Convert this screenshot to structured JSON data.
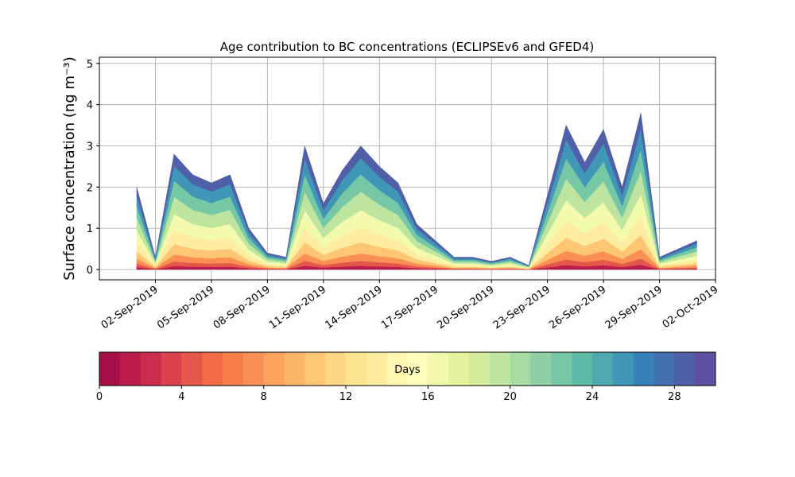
{
  "chart_data": {
    "type": "stacked_area",
    "title": "Age contribution to BC concentrations (ECLIPSEv6 and GFED4)",
    "ylabel": "Surface concentration (ng m⁻³)",
    "x": [
      "2019-09-01",
      "2019-09-02",
      "2019-09-03",
      "2019-09-04",
      "2019-09-05",
      "2019-09-06",
      "2019-09-07",
      "2019-09-08",
      "2019-09-09",
      "2019-09-10",
      "2019-09-11",
      "2019-09-12",
      "2019-09-13",
      "2019-09-14",
      "2019-09-15",
      "2019-09-16",
      "2019-09-17",
      "2019-09-18",
      "2019-09-19",
      "2019-09-20",
      "2019-09-21",
      "2019-09-22",
      "2019-09-23",
      "2019-09-24",
      "2019-09-25",
      "2019-09-26",
      "2019-09-27",
      "2019-09-28",
      "2019-09-29",
      "2019-09-30",
      "2019-10-01"
    ],
    "xlim": [
      "2019-08-30",
      "2019-10-02"
    ],
    "xticks": [
      {
        "value": "2019-09-02",
        "label": "02-Sep-2019"
      },
      {
        "value": "2019-09-05",
        "label": "05-Sep-2019"
      },
      {
        "value": "2019-09-08",
        "label": "08-Sep-2019"
      },
      {
        "value": "2019-09-11",
        "label": "11-Sep-2019"
      },
      {
        "value": "2019-09-14",
        "label": "14-Sep-2019"
      },
      {
        "value": "2019-09-17",
        "label": "17-Sep-2019"
      },
      {
        "value": "2019-09-20",
        "label": "20-Sep-2019"
      },
      {
        "value": "2019-09-23",
        "label": "23-Sep-2019"
      },
      {
        "value": "2019-09-26",
        "label": "26-Sep-2019"
      },
      {
        "value": "2019-09-29",
        "label": "29-Sep-2019"
      },
      {
        "value": "2019-10-02",
        "label": "02-Oct-2019"
      }
    ],
    "ylim": [
      -0.25,
      5.15
    ],
    "yticks": [
      0,
      1,
      2,
      3,
      4,
      5
    ],
    "grid": true,
    "series": [
      {
        "color": "#b91b4a",
        "values": [
          0.06,
          0.009,
          0.084,
          0.069,
          0.063,
          0.069,
          0.03,
          0.012,
          0.009,
          0.09,
          0.048,
          0.072,
          0.09,
          0.075,
          0.063,
          0.033,
          0.021,
          0.009,
          0.009,
          0.006,
          0.009,
          0.003,
          0.054,
          0.105,
          0.078,
          0.102,
          0.06,
          0.114,
          0.009,
          0.015,
          0.021
        ]
      },
      {
        "color": "#e4574a",
        "values": [
          0.08,
          0.012,
          0.112,
          0.092,
          0.084,
          0.092,
          0.04,
          0.016,
          0.012,
          0.12,
          0.064,
          0.096,
          0.12,
          0.1,
          0.084,
          0.044,
          0.028,
          0.012,
          0.012,
          0.008,
          0.012,
          0.004,
          0.072,
          0.14,
          0.104,
          0.136,
          0.08,
          0.152,
          0.012,
          0.02,
          0.028
        ]
      },
      {
        "color": "#f98f53",
        "values": [
          0.12,
          0.018,
          0.168,
          0.138,
          0.126,
          0.138,
          0.06,
          0.024,
          0.018,
          0.18,
          0.096,
          0.144,
          0.18,
          0.15,
          0.126,
          0.066,
          0.042,
          0.018,
          0.018,
          0.012,
          0.018,
          0.006,
          0.108,
          0.21,
          0.156,
          0.204,
          0.12,
          0.228,
          0.018,
          0.03,
          0.042
        ]
      },
      {
        "color": "#fec575",
        "values": [
          0.18,
          0.027,
          0.252,
          0.207,
          0.189,
          0.207,
          0.09,
          0.036,
          0.027,
          0.27,
          0.144,
          0.216,
          0.27,
          0.225,
          0.189,
          0.099,
          0.063,
          0.027,
          0.027,
          0.018,
          0.027,
          0.009,
          0.162,
          0.315,
          0.234,
          0.306,
          0.18,
          0.342,
          0.027,
          0.045,
          0.063
        ]
      },
      {
        "color": "#feeda0",
        "values": [
          0.24,
          0.036,
          0.336,
          0.276,
          0.252,
          0.276,
          0.12,
          0.048,
          0.036,
          0.36,
          0.192,
          0.288,
          0.36,
          0.3,
          0.252,
          0.132,
          0.084,
          0.036,
          0.036,
          0.024,
          0.036,
          0.012,
          0.216,
          0.42,
          0.312,
          0.408,
          0.24,
          0.456,
          0.036,
          0.06,
          0.084
        ]
      },
      {
        "color": "#f2faab",
        "values": [
          0.28,
          0.042,
          0.392,
          0.322,
          0.294,
          0.322,
          0.14,
          0.056,
          0.042,
          0.42,
          0.224,
          0.336,
          0.42,
          0.35,
          0.294,
          0.154,
          0.098,
          0.042,
          0.042,
          0.028,
          0.042,
          0.014,
          0.252,
          0.49,
          0.364,
          0.476,
          0.28,
          0.532,
          0.042,
          0.07,
          0.098
        ]
      },
      {
        "color": "#bee5a0",
        "values": [
          0.3,
          0.045,
          0.42,
          0.345,
          0.315,
          0.345,
          0.15,
          0.06,
          0.045,
          0.45,
          0.24,
          0.36,
          0.45,
          0.375,
          0.315,
          0.165,
          0.105,
          0.045,
          0.045,
          0.03,
          0.045,
          0.015,
          0.27,
          0.525,
          0.39,
          0.51,
          0.3,
          0.57,
          0.045,
          0.075,
          0.105
        ]
      },
      {
        "color": "#75c7a5",
        "values": [
          0.28,
          0.042,
          0.392,
          0.322,
          0.294,
          0.322,
          0.14,
          0.056,
          0.042,
          0.42,
          0.224,
          0.336,
          0.42,
          0.35,
          0.294,
          0.154,
          0.098,
          0.042,
          0.042,
          0.028,
          0.042,
          0.014,
          0.252,
          0.49,
          0.364,
          0.476,
          0.28,
          0.532,
          0.042,
          0.07,
          0.098
        ]
      },
      {
        "color": "#3f96b6",
        "values": [
          0.26,
          0.039,
          0.364,
          0.299,
          0.273,
          0.299,
          0.13,
          0.052,
          0.039,
          0.39,
          0.208,
          0.312,
          0.39,
          0.325,
          0.273,
          0.143,
          0.091,
          0.039,
          0.039,
          0.026,
          0.039,
          0.013,
          0.234,
          0.455,
          0.338,
          0.442,
          0.26,
          0.494,
          0.039,
          0.065,
          0.091
        ]
      },
      {
        "color": "#5060a8",
        "values": [
          0.2,
          0.03,
          0.28,
          0.23,
          0.21,
          0.23,
          0.1,
          0.04,
          0.03,
          0.3,
          0.16,
          0.24,
          0.3,
          0.25,
          0.21,
          0.11,
          0.07,
          0.03,
          0.03,
          0.02,
          0.03,
          0.01,
          0.18,
          0.35,
          0.26,
          0.34,
          0.2,
          0.38,
          0.03,
          0.05,
          0.07
        ]
      }
    ],
    "colorbar": {
      "label": "Days",
      "lim": [
        0,
        30
      ],
      "ticks": [
        0,
        4,
        8,
        12,
        16,
        20,
        24,
        28
      ],
      "colors": [
        "#a50f45",
        "#b91b4a",
        "#cb2c4b",
        "#da424d",
        "#e4574a",
        "#ef6a45",
        "#f67c4a",
        "#f98f53",
        "#fca35d",
        "#fdb567",
        "#fec575",
        "#fed583",
        "#fee391",
        "#feeda0",
        "#fff6b0",
        "#fcfdbb",
        "#f2faab",
        "#e5f49c",
        "#d3ec9b",
        "#bee5a0",
        "#a7dba4",
        "#8ed0a4",
        "#75c7a5",
        "#5fb9a8",
        "#4ea8ae",
        "#3f96b6",
        "#3682ba",
        "#4270b1",
        "#5060a8",
        "#5e4fa2"
      ]
    }
  }
}
